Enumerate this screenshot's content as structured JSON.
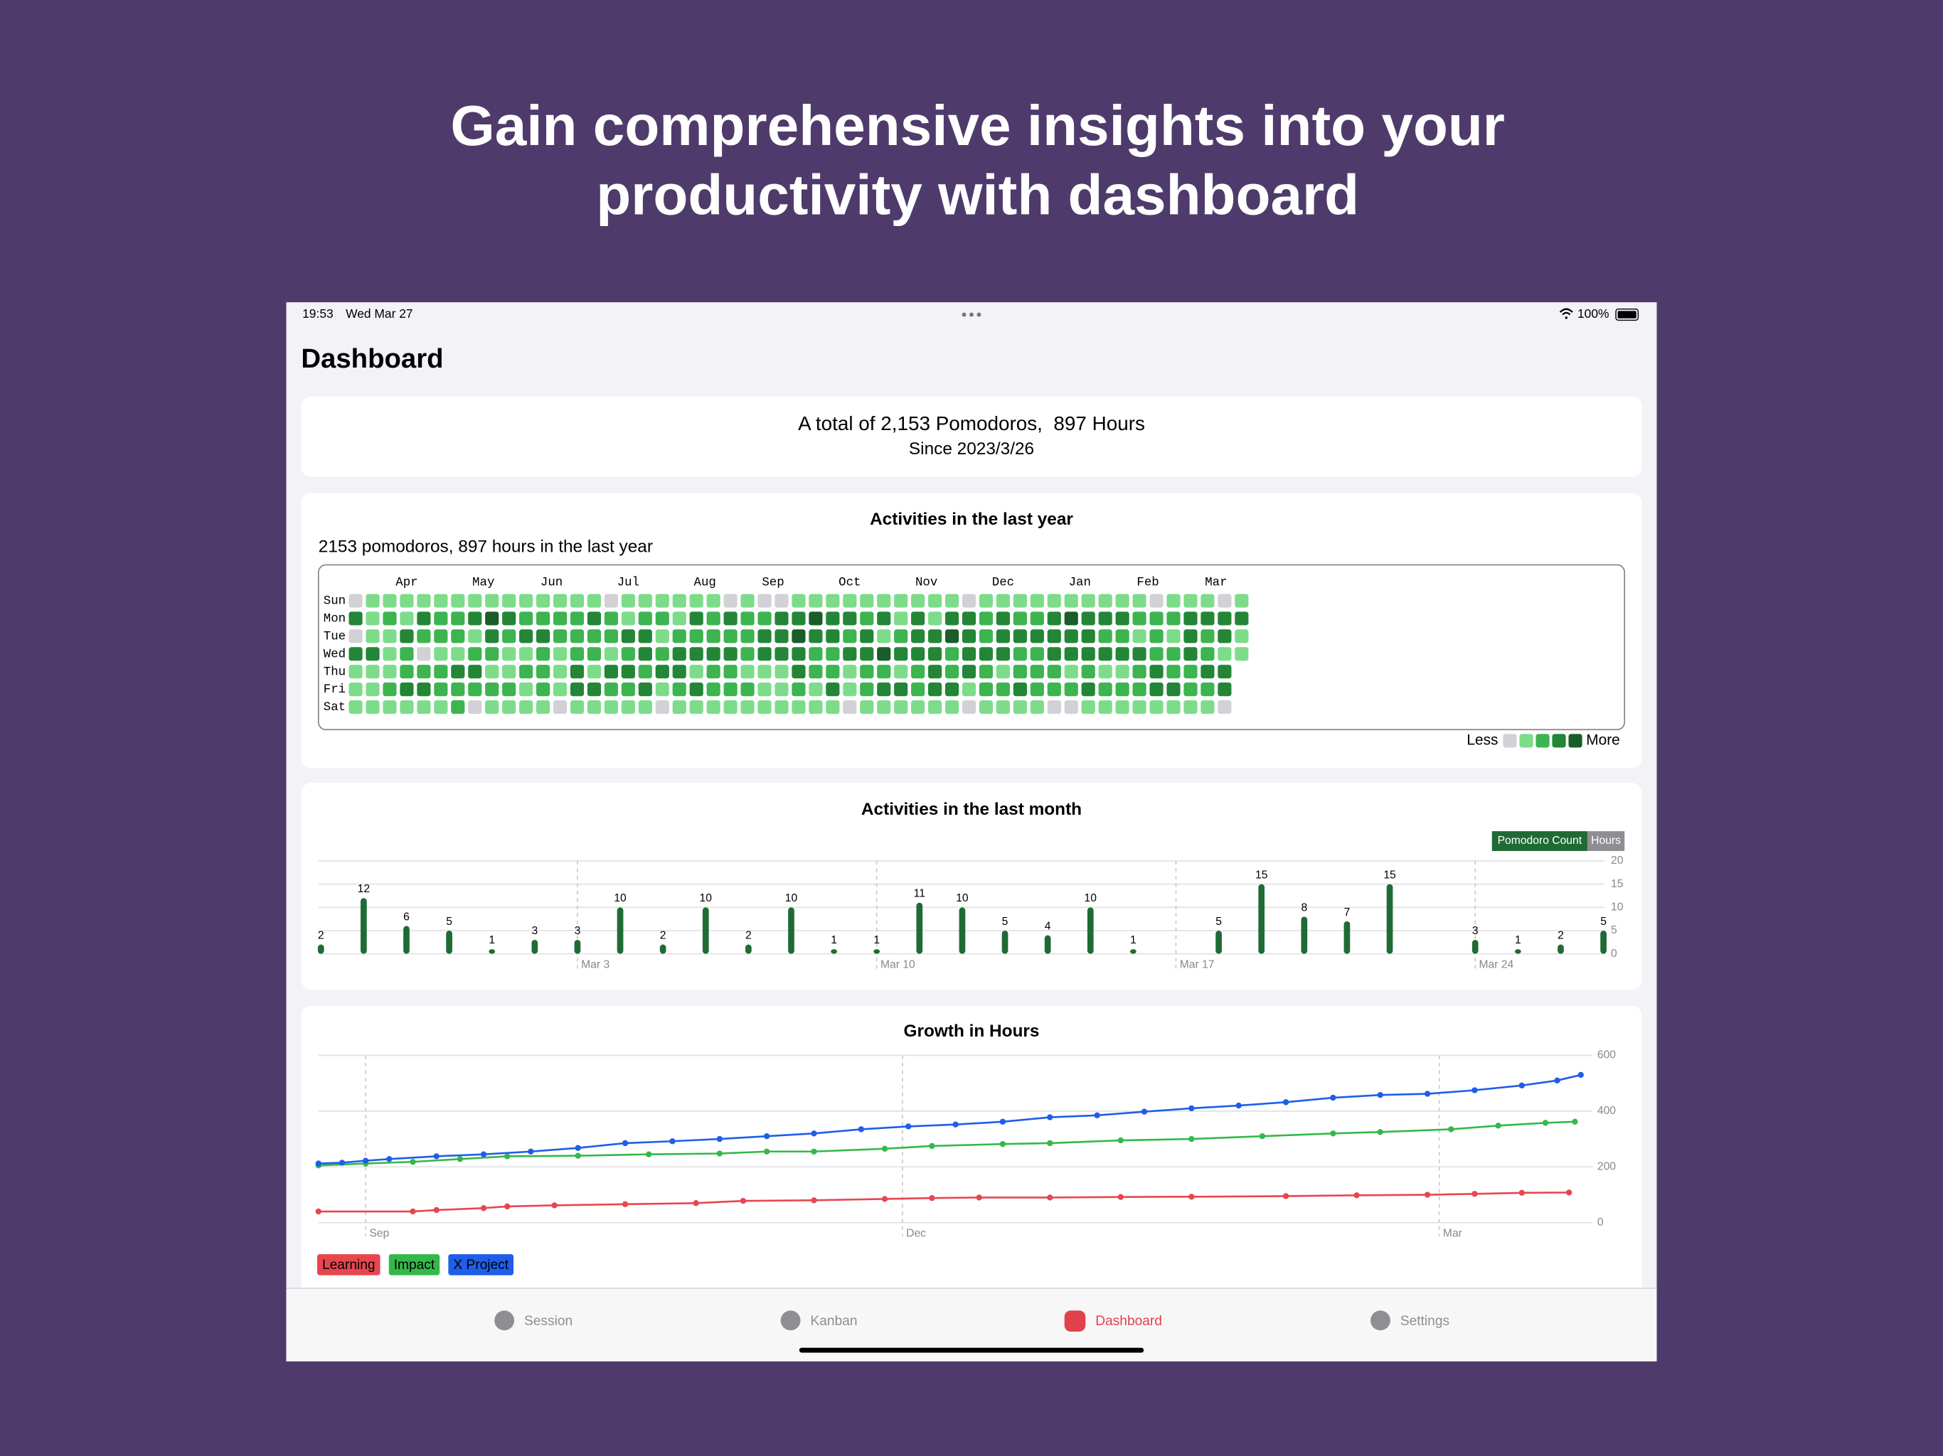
{
  "header": {
    "title_lines": [
      "Gain comprehensive insights into your",
      "productivity with dashboard"
    ]
  },
  "status_bar": {
    "time": "19:53",
    "date": "Wed Mar 27",
    "battery": "100%"
  },
  "page_title": "Dashboard",
  "summary": {
    "line1": "A total of 2,153 Pomodoros,  897 Hours",
    "line2": "Since 2023/3/26"
  },
  "chart_data": [
    {
      "type": "heatmap",
      "title": "Activities in the last year",
      "subtitle": "2153 pomodoros, 897 hours in the last year",
      "months": [
        {
          "label": "Apr",
          "week": 3
        },
        {
          "label": "May",
          "week": 7.5
        },
        {
          "label": "Jun",
          "week": 11.5
        },
        {
          "label": "Jul",
          "week": 16
        },
        {
          "label": "Aug",
          "week": 20.5
        },
        {
          "label": "Sep",
          "week": 24.5
        },
        {
          "label": "Oct",
          "week": 29
        },
        {
          "label": "Nov",
          "week": 33.5
        },
        {
          "label": "Dec",
          "week": 38
        },
        {
          "label": "Jan",
          "week": 42.5
        },
        {
          "label": "Feb",
          "week": 46.5
        },
        {
          "label": "Mar",
          "week": 50.5
        }
      ],
      "rows": [
        {
          "label": "Sun",
          "values": [
            0,
            1,
            1,
            1,
            1,
            1,
            1,
            1,
            1,
            1,
            1,
            1,
            1,
            1,
            1,
            0,
            1,
            1,
            1,
            1,
            1,
            1,
            0,
            1,
            0,
            0,
            1,
            1,
            1,
            1,
            1,
            1,
            1,
            1,
            1,
            1,
            0,
            1,
            1,
            1,
            1,
            1,
            1,
            1,
            1,
            1,
            1,
            0,
            1,
            1,
            1,
            0,
            1
          ]
        },
        {
          "label": "Mon",
          "values": [
            3,
            1,
            2,
            1,
            3,
            2,
            2,
            3,
            4,
            3,
            2,
            2,
            2,
            2,
            3,
            2,
            1,
            2,
            2,
            1,
            3,
            2,
            3,
            2,
            2,
            3,
            3,
            4,
            3,
            3,
            2,
            3,
            1,
            3,
            1,
            3,
            3,
            2,
            3,
            2,
            2,
            3,
            4,
            3,
            3,
            3,
            2,
            2,
            2,
            3,
            3,
            3,
            3
          ]
        },
        {
          "label": "Tue",
          "values": [
            0,
            1,
            1,
            3,
            2,
            2,
            2,
            1,
            3,
            2,
            3,
            3,
            2,
            2,
            2,
            2,
            3,
            3,
            1,
            2,
            2,
            2,
            2,
            2,
            3,
            3,
            4,
            3,
            3,
            2,
            3,
            1,
            2,
            3,
            3,
            4,
            3,
            2,
            3,
            3,
            3,
            3,
            3,
            3,
            2,
            2,
            1,
            2,
            1,
            3,
            2,
            3,
            1
          ]
        },
        {
          "label": "Wed",
          "values": [
            3,
            3,
            1,
            2,
            0,
            1,
            1,
            2,
            2,
            1,
            1,
            2,
            1,
            2,
            2,
            1,
            2,
            3,
            2,
            3,
            3,
            3,
            3,
            2,
            3,
            3,
            3,
            2,
            2,
            3,
            3,
            4,
            3,
            3,
            3,
            2,
            3,
            3,
            3,
            2,
            2,
            3,
            3,
            3,
            3,
            3,
            3,
            2,
            2,
            3,
            2,
            1,
            1
          ]
        },
        {
          "label": "Thu",
          "values": [
            1,
            1,
            1,
            2,
            2,
            2,
            3,
            3,
            1,
            1,
            2,
            2,
            1,
            3,
            1,
            3,
            3,
            2,
            3,
            3,
            1,
            2,
            2,
            1,
            1,
            1,
            3,
            2,
            2,
            1,
            2,
            2,
            1,
            2,
            3,
            2,
            3,
            2,
            1,
            2,
            2,
            2,
            1,
            2,
            1,
            1,
            2,
            3,
            2,
            2,
            3,
            3
          ]
        },
        {
          "label": "Fri",
          "values": [
            1,
            1,
            2,
            3,
            3,
            2,
            2,
            2,
            2,
            2,
            1,
            2,
            1,
            3,
            3,
            2,
            2,
            3,
            1,
            2,
            3,
            2,
            2,
            2,
            1,
            1,
            2,
            1,
            3,
            1,
            2,
            3,
            3,
            2,
            3,
            3,
            1,
            2,
            2,
            3,
            2,
            2,
            2,
            3,
            2,
            2,
            2,
            3,
            3,
            2,
            2,
            3
          ]
        },
        {
          "label": "Sat",
          "values": [
            1,
            1,
            1,
            1,
            1,
            1,
            2,
            0,
            1,
            1,
            1,
            1,
            0,
            1,
            1,
            1,
            1,
            1,
            0,
            1,
            1,
            1,
            1,
            1,
            1,
            1,
            1,
            1,
            1,
            0,
            1,
            1,
            1,
            1,
            1,
            1,
            0,
            1,
            1,
            1,
            1,
            0,
            0,
            1,
            1,
            1,
            1,
            1,
            1,
            1,
            1,
            0
          ]
        }
      ],
      "colors": [
        "#d1d1d6",
        "#7ddc8a",
        "#3cb44f",
        "#238636",
        "#1a5c2a"
      ],
      "legend_less": "Less",
      "legend_more": "More"
    },
    {
      "type": "bar",
      "title": "Activities in the last month",
      "categories": [
        null,
        null,
        null,
        null,
        null,
        null,
        "Mar 3",
        null,
        null,
        null,
        null,
        null,
        null,
        "Mar 10",
        null,
        null,
        null,
        null,
        null,
        null,
        "Mar 17",
        null,
        null,
        null,
        null,
        null,
        null,
        "Mar 24",
        null,
        null,
        null
      ],
      "series": [
        {
          "name": "Pomodoro Count",
          "color": "#1f6b35",
          "values": [
            2,
            12,
            6,
            5,
            1,
            3,
            3,
            10,
            2,
            10,
            2,
            10,
            1,
            1,
            11,
            10,
            5,
            4,
            10,
            1,
            null,
            5,
            15,
            8,
            7,
            15,
            null,
            3,
            1,
            2,
            5
          ]
        }
      ],
      "toggle": "Hours",
      "ylim": [
        0,
        20
      ],
      "yticks": [
        0,
        5,
        10,
        15,
        20
      ],
      "grid": true
    },
    {
      "type": "line",
      "title": "Growth in Hours",
      "xlim": [
        0,
        217
      ],
      "xticks": [
        {
          "value": 8,
          "label": "Sep"
        },
        {
          "value": 99,
          "label": "Dec"
        },
        {
          "value": 190,
          "label": "Mar"
        }
      ],
      "ylim": [
        0,
        600
      ],
      "yticks": [
        0,
        200,
        400,
        600
      ],
      "grid": true,
      "series": [
        {
          "name": "Learning",
          "color": "#e8464f",
          "x": [
            0,
            16,
            20,
            28,
            32,
            40,
            52,
            64,
            72,
            84,
            96,
            104,
            112,
            124,
            136,
            148,
            164,
            176,
            188,
            196,
            204,
            212
          ],
          "values": [
            40,
            40,
            45,
            52,
            58,
            62,
            66,
            70,
            78,
            80,
            85,
            88,
            90,
            90,
            92,
            93,
            95,
            98,
            100,
            103,
            107,
            108
          ]
        },
        {
          "name": "Impact",
          "color": "#34b84a",
          "x": [
            0,
            8,
            16,
            24,
            32,
            44,
            56,
            68,
            76,
            84,
            96,
            104,
            116,
            124,
            136,
            148,
            160,
            172,
            180,
            192,
            200,
            208,
            213
          ],
          "values": [
            205,
            212,
            218,
            228,
            238,
            240,
            245,
            248,
            255,
            255,
            265,
            275,
            282,
            285,
            295,
            300,
            310,
            320,
            325,
            335,
            348,
            358,
            362
          ]
        },
        {
          "name": "X Project",
          "color": "#1f5ee8",
          "x": [
            0,
            4,
            8,
            12,
            20,
            28,
            36,
            44,
            52,
            60,
            68,
            76,
            84,
            92,
            100,
            108,
            116,
            124,
            132,
            140,
            148,
            156,
            164,
            172,
            180,
            188,
            196,
            204,
            210,
            214
          ],
          "values": [
            212,
            215,
            222,
            228,
            238,
            245,
            255,
            268,
            285,
            292,
            300,
            310,
            320,
            335,
            345,
            352,
            362,
            378,
            385,
            398,
            410,
            420,
            432,
            448,
            458,
            462,
            475,
            492,
            510,
            530
          ]
        }
      ]
    }
  ],
  "tabs": [
    {
      "label": "Session"
    },
    {
      "label": "Kanban"
    },
    {
      "label": "Dashboard"
    },
    {
      "label": "Settings"
    }
  ]
}
